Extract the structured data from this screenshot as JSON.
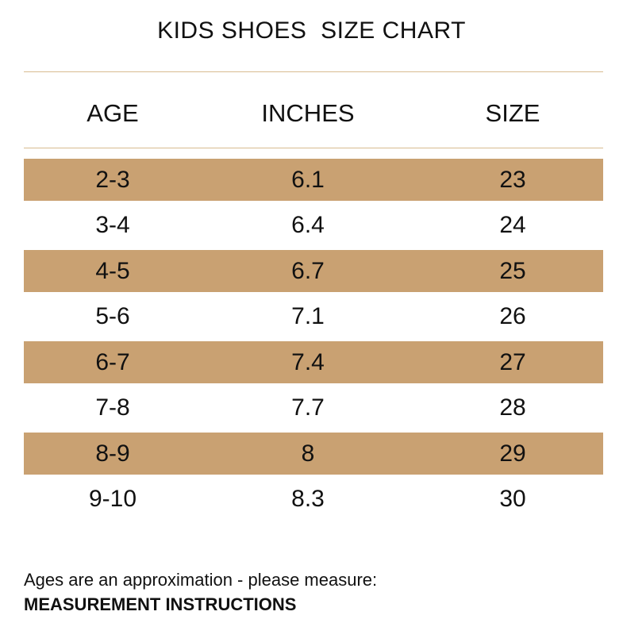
{
  "title": "KIDS SHOES  SIZE CHART",
  "colors": {
    "band": "#c9a172",
    "rule": "#d8bb90",
    "text": "#111111"
  },
  "table": {
    "headers": [
      "AGE",
      "INCHES",
      "SIZE"
    ],
    "rows": [
      {
        "age": "2-3",
        "inches": "6.1",
        "size": "23"
      },
      {
        "age": "3-4",
        "inches": "6.4",
        "size": "24"
      },
      {
        "age": "4-5",
        "inches": "6.7",
        "size": "25"
      },
      {
        "age": "5-6",
        "inches": "7.1",
        "size": "26"
      },
      {
        "age": "6-7",
        "inches": "7.4",
        "size": "27"
      },
      {
        "age": "7-8",
        "inches": "7.7",
        "size": "28"
      },
      {
        "age": "8-9",
        "inches": "8",
        "size": "29"
      },
      {
        "age": "9-10",
        "inches": "8.3",
        "size": "30"
      }
    ]
  },
  "footer": {
    "note": "Ages are an approximation - please measure:",
    "link": "MEASUREMENT INSTRUCTIONS"
  }
}
